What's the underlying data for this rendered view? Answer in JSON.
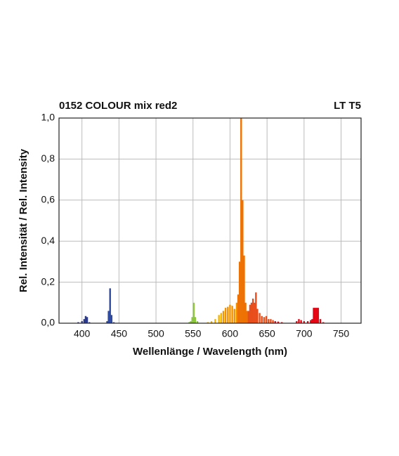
{
  "chart_data": {
    "type": "bar",
    "title": "0152 COLOUR mix red2",
    "subtitle": "LT T5",
    "x_label": "Wellenlänge / Wavelength (nm)",
    "y_label": "Rel. Intensität / Rel. Intensity",
    "x": [
      395,
      400,
      403,
      405,
      407,
      410,
      434,
      436,
      438,
      440,
      443,
      545,
      547,
      549,
      551,
      553,
      556,
      570,
      575,
      580,
      585,
      588,
      591,
      594,
      597,
      600,
      603,
      606,
      609,
      611,
      613,
      615,
      617,
      619,
      621,
      623,
      625,
      627,
      629,
      631,
      633,
      635,
      637,
      640,
      643,
      646,
      649,
      652,
      655,
      658,
      661,
      665,
      670,
      690,
      693,
      696,
      700,
      705,
      709,
      711,
      713,
      715,
      717,
      719,
      722,
      726
    ],
    "values": [
      0.005,
      0.01,
      0.02,
      0.035,
      0.03,
      0.005,
      0.01,
      0.06,
      0.17,
      0.04,
      0.005,
      0.005,
      0.01,
      0.03,
      0.1,
      0.03,
      0.01,
      0.005,
      0.01,
      0.02,
      0.04,
      0.05,
      0.06,
      0.075,
      0.08,
      0.09,
      0.085,
      0.07,
      0.1,
      0.14,
      0.3,
      1.0,
      0.6,
      0.33,
      0.1,
      0.06,
      0.06,
      0.09,
      0.1,
      0.12,
      0.1,
      0.15,
      0.07,
      0.05,
      0.035,
      0.03,
      0.035,
      0.02,
      0.02,
      0.015,
      0.01,
      0.008,
      0.005,
      0.01,
      0.02,
      0.015,
      0.01,
      0.01,
      0.015,
      0.02,
      0.075,
      0.075,
      0.075,
      0.075,
      0.02,
      0.005
    ],
    "xlim": [
      369,
      777
    ],
    "ylim": [
      0,
      1
    ],
    "xticks": [
      400,
      450,
      500,
      550,
      600,
      650,
      700,
      750
    ],
    "yticks": [
      {
        "value": 0,
        "label": "0,0"
      },
      {
        "value": 0.2,
        "label": "0,2"
      },
      {
        "value": 0.4,
        "label": "0,4"
      },
      {
        "value": 0.6,
        "label": "0,6"
      },
      {
        "value": 0.8,
        "label": "0,8"
      },
      {
        "value": 1,
        "label": "1,0"
      }
    ],
    "grid": true
  }
}
